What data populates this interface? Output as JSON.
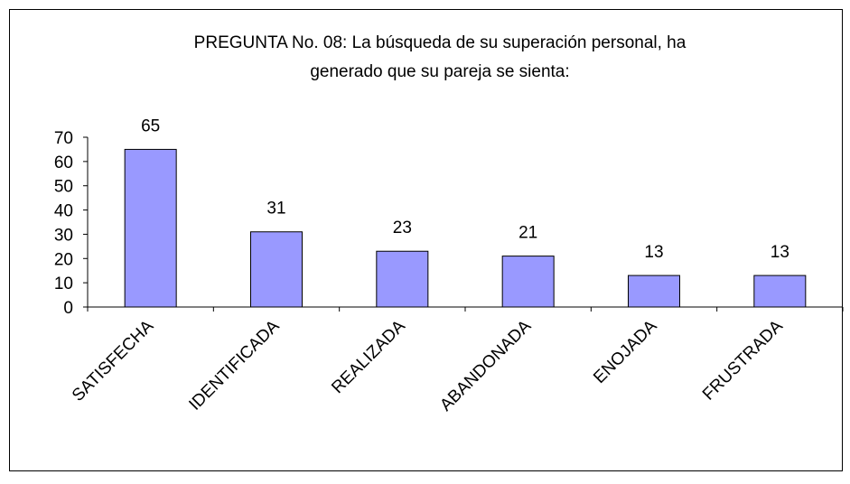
{
  "chart_data": {
    "type": "bar",
    "title": [
      "PREGUNTA No. 08: La búsqueda de su superación personal, ha",
      "generado que su pareja se sienta:"
    ],
    "categories": [
      "SATISFECHA",
      "IDENTIFICADA",
      "REALIZADA",
      "ABANDONADA",
      "ENOJADA",
      "FRUSTRADA"
    ],
    "values": [
      65,
      31,
      23,
      21,
      13,
      13
    ],
    "color": "#9999ff",
    "ylim": [
      0,
      70
    ],
    "yticks": [
      0,
      10,
      20,
      30,
      40,
      50,
      60,
      70
    ],
    "grid": false
  }
}
